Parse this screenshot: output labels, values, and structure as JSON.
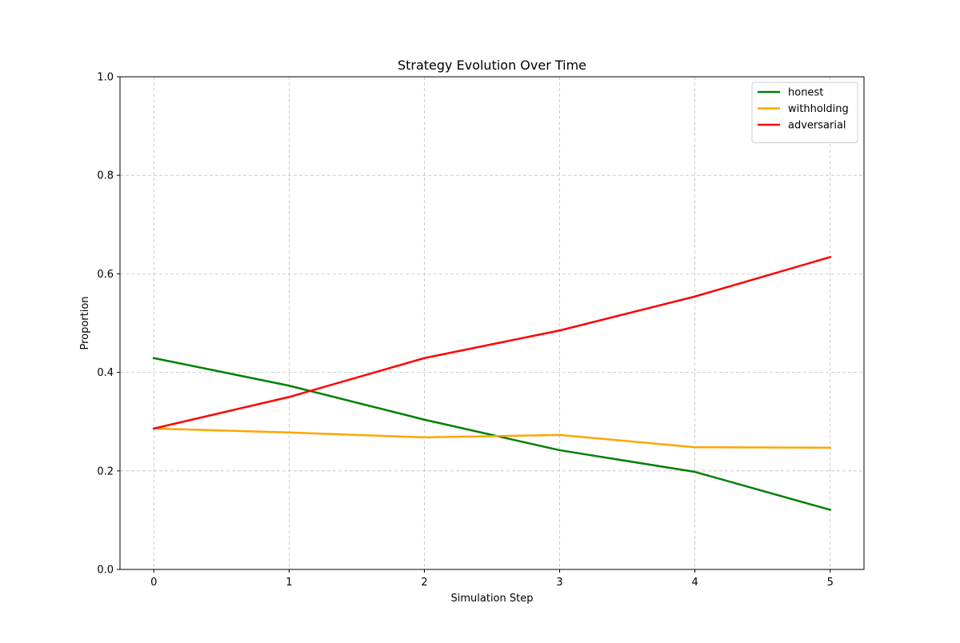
{
  "chart_data": {
    "type": "line",
    "title": "Strategy Evolution Over Time",
    "xlabel": "Simulation Step",
    "ylabel": "Proportion",
    "x": [
      0,
      1,
      2,
      3,
      4,
      5
    ],
    "xlim": [
      -0.25,
      5.25
    ],
    "ylim": [
      0.0,
      1.0
    ],
    "xticks": [
      "0",
      "1",
      "2",
      "3",
      "4",
      "5"
    ],
    "yticks": [
      "0.0",
      "0.2",
      "0.4",
      "0.6",
      "0.8",
      "1.0"
    ],
    "grid": true,
    "legend_position": "top-right",
    "series": [
      {
        "name": "honest",
        "color": "#008000",
        "values": [
          0.429,
          0.373,
          0.304,
          0.242,
          0.198,
          0.121
        ]
      },
      {
        "name": "withholding",
        "color": "#FFA500",
        "values": [
          0.286,
          0.278,
          0.268,
          0.273,
          0.248,
          0.247
        ]
      },
      {
        "name": "adversarial",
        "color": "#FF0000",
        "values": [
          0.286,
          0.35,
          0.429,
          0.485,
          0.554,
          0.634
        ]
      }
    ]
  }
}
